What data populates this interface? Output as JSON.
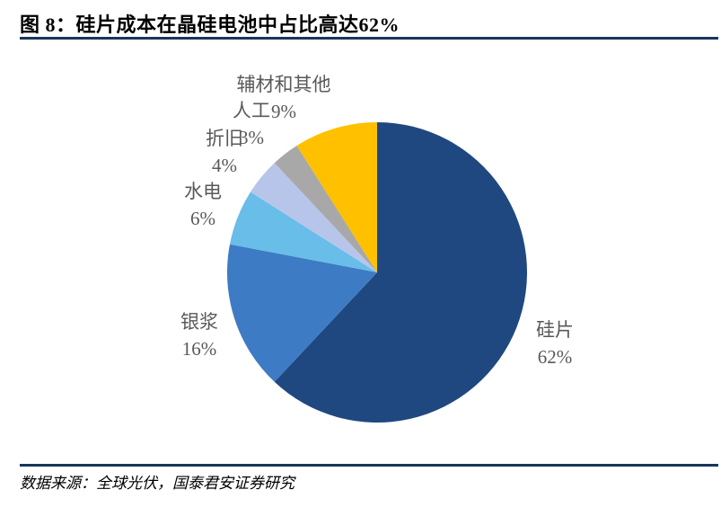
{
  "header": {
    "title": "图 8：硅片成本在晶硅电池中占比高达62%"
  },
  "footer": {
    "source": "数据来源：全球光伏，国泰君安证券研究"
  },
  "colors": {
    "rule": "#17365D",
    "label_text": "#595959",
    "title_text": "#000000"
  },
  "chart_data": {
    "type": "pie",
    "title": "硅片成本在晶硅电池中占比高达62%",
    "start_angle_deg": 0,
    "direction": "clockwise",
    "legend": "none",
    "slices": [
      {
        "key": "guipian",
        "label": "硅片",
        "value": 62,
        "display": "62%",
        "color": "#1F4880"
      },
      {
        "key": "yinjiang",
        "label": "银浆",
        "value": 16,
        "display": "16%",
        "color": "#3D7CC4"
      },
      {
        "key": "shuidian",
        "label": "水电",
        "value": 6,
        "display": "6%",
        "color": "#69BDE9"
      },
      {
        "key": "zhejiu",
        "label": "折旧",
        "value": 4,
        "display": "4%",
        "color": "#B8C5EA"
      },
      {
        "key": "rengong",
        "label": "人工",
        "value": 3,
        "display": "3%",
        "color": "#A8A8A8"
      },
      {
        "key": "fucai",
        "label": "辅材和其他",
        "value": 9,
        "display": "9%",
        "color": "#FFC000"
      }
    ]
  }
}
